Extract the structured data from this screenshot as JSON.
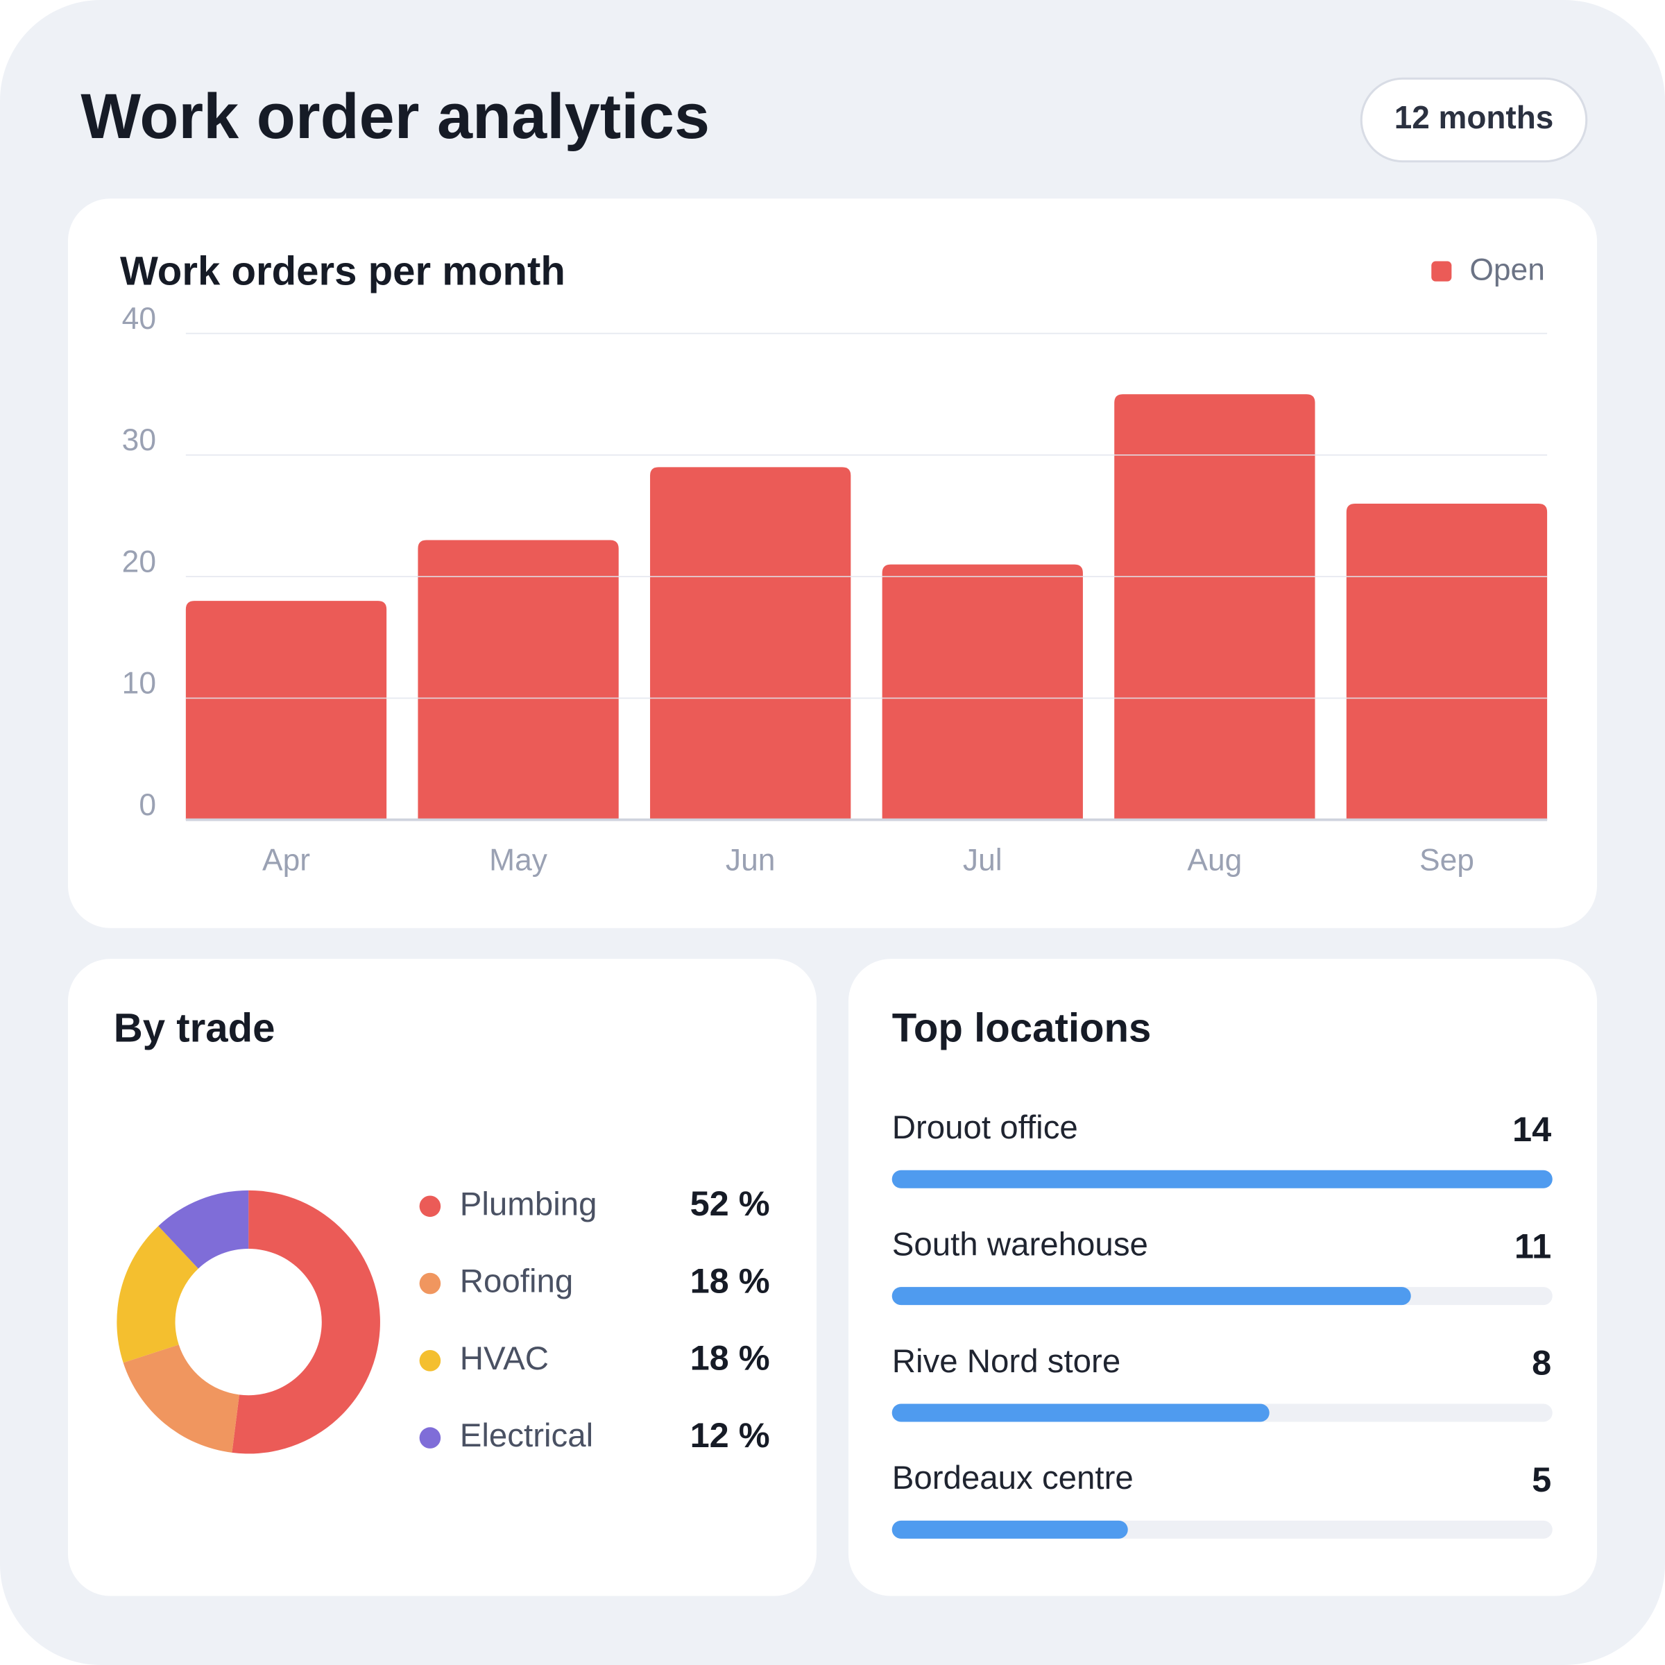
{
  "title": "Work order analytics",
  "period": "12 months",
  "chart_data": [
    {
      "type": "bar",
      "title": "Work orders per month",
      "categories": [
        "Apr",
        "May",
        "Jun",
        "Jul",
        "Aug",
        "Sep"
      ],
      "series": [
        {
          "name": "Open",
          "color": "#eb5b57",
          "values": [
            18,
            23,
            29,
            21,
            35,
            26
          ]
        }
      ],
      "ylim": [
        0,
        40
      ],
      "yticks": [
        0,
        10,
        20,
        30,
        40
      ],
      "grid": true,
      "legend": "top-right"
    },
    {
      "type": "donut",
      "title": "By trade",
      "categories": [
        "Plumbing",
        "Roofing",
        "HVAC",
        "Electrical"
      ],
      "values": [
        52,
        18,
        18,
        12
      ],
      "value_labels": [
        "52 %",
        "18 %",
        "18 %",
        "12 %"
      ],
      "colors": [
        "#eb5b57",
        "#f0965f",
        "#f4bf2f",
        "#7f6dd8"
      ]
    },
    {
      "type": "hbar",
      "title": "Top locations",
      "categories": [
        "Drouot office",
        "South warehouse",
        "Rive Nord store",
        "Bordeaux centre"
      ],
      "values": [
        14,
        11,
        8,
        5
      ],
      "color": "#4f9bef",
      "xlim": [
        0,
        14
      ]
    }
  ]
}
